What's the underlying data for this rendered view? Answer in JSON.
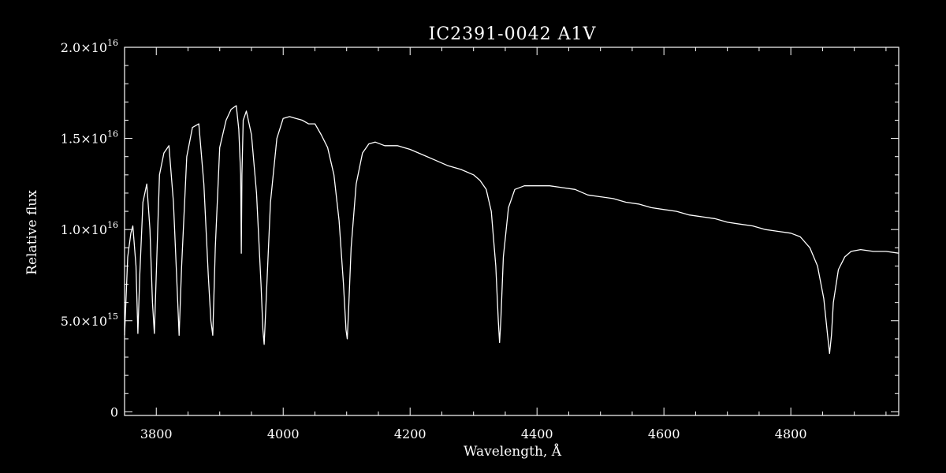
{
  "chart_data": {
    "type": "line",
    "title": "IC2391-0042  A1V",
    "xlabel": "Wavelength, Å",
    "ylabel": "Relative flux",
    "xlim": [
      3750,
      4970
    ],
    "ylim": [
      -0.02,
      2.0
    ],
    "y_unit_exponent": 16,
    "x_ticks": [
      {
        "value": 3800,
        "label": "3800"
      },
      {
        "value": 4000,
        "label": "4000"
      },
      {
        "value": 4200,
        "label": "4200"
      },
      {
        "value": 4400,
        "label": "4400"
      },
      {
        "value": 4600,
        "label": "4600"
      },
      {
        "value": 4800,
        "label": "4800"
      }
    ],
    "y_ticks": [
      {
        "value": 0,
        "mant": "0",
        "exp": ""
      },
      {
        "value": 0.5,
        "mant": "5.0×10",
        "exp": "15"
      },
      {
        "value": 1.0,
        "mant": "1.0×10",
        "exp": "16"
      },
      {
        "value": 1.5,
        "mant": "1.5×10",
        "exp": "16"
      },
      {
        "value": 2.0,
        "mant": "2.0×10",
        "exp": "16"
      }
    ],
    "series": [
      {
        "color": "#ffffff",
        "x": [
          3750,
          3755,
          3760,
          3763,
          3768,
          3771,
          3774,
          3779,
          3785,
          3790,
          3794,
          3797,
          3800,
          3805,
          3812,
          3820,
          3827,
          3832,
          3836,
          3840,
          3848,
          3857,
          3867,
          3875,
          3882,
          3886,
          3889,
          3893,
          3900,
          3910,
          3918,
          3926,
          3930,
          3933,
          3934,
          3935,
          3937,
          3942,
          3950,
          3958,
          3965,
          3968,
          3970,
          3973,
          3980,
          3990,
          4000,
          4010,
          4020,
          4030,
          4040,
          4050,
          4060,
          4070,
          4080,
          4088,
          4095,
          4099,
          4101,
          4103,
          4107,
          4115,
          4125,
          4135,
          4145,
          4160,
          4180,
          4200,
          4220,
          4240,
          4260,
          4280,
          4300,
          4310,
          4320,
          4328,
          4335,
          4339,
          4341,
          4343,
          4347,
          4355,
          4365,
          4380,
          4400,
          4420,
          4440,
          4460,
          4480,
          4500,
          4520,
          4540,
          4560,
          4580,
          4600,
          4620,
          4640,
          4660,
          4680,
          4700,
          4720,
          4740,
          4760,
          4780,
          4800,
          4815,
          4830,
          4842,
          4852,
          4858,
          4861,
          4864,
          4867,
          4875,
          4885,
          4895,
          4910,
          4930,
          4950,
          4970
        ],
        "values": [
          0.42,
          0.85,
          0.98,
          1.02,
          0.8,
          0.43,
          0.75,
          1.15,
          1.25,
          1.0,
          0.6,
          0.43,
          0.75,
          1.3,
          1.42,
          1.46,
          1.15,
          0.75,
          0.42,
          0.8,
          1.4,
          1.56,
          1.58,
          1.25,
          0.75,
          0.5,
          0.42,
          0.9,
          1.45,
          1.6,
          1.66,
          1.68,
          1.55,
          1.3,
          0.87,
          1.3,
          1.6,
          1.65,
          1.52,
          1.2,
          0.7,
          0.45,
          0.37,
          0.6,
          1.15,
          1.5,
          1.61,
          1.62,
          1.61,
          1.6,
          1.58,
          1.58,
          1.52,
          1.45,
          1.3,
          1.05,
          0.7,
          0.45,
          0.4,
          0.55,
          0.9,
          1.25,
          1.42,
          1.47,
          1.48,
          1.46,
          1.46,
          1.44,
          1.41,
          1.38,
          1.35,
          1.33,
          1.3,
          1.27,
          1.22,
          1.1,
          0.8,
          0.5,
          0.38,
          0.5,
          0.85,
          1.12,
          1.22,
          1.24,
          1.24,
          1.24,
          1.23,
          1.22,
          1.19,
          1.18,
          1.17,
          1.15,
          1.14,
          1.12,
          1.11,
          1.1,
          1.08,
          1.07,
          1.06,
          1.04,
          1.03,
          1.02,
          1.0,
          0.99,
          0.98,
          0.96,
          0.9,
          0.8,
          0.62,
          0.42,
          0.32,
          0.42,
          0.6,
          0.78,
          0.85,
          0.88,
          0.89,
          0.88,
          0.88,
          0.87
        ]
      }
    ],
    "grid": false,
    "legend": "none"
  }
}
